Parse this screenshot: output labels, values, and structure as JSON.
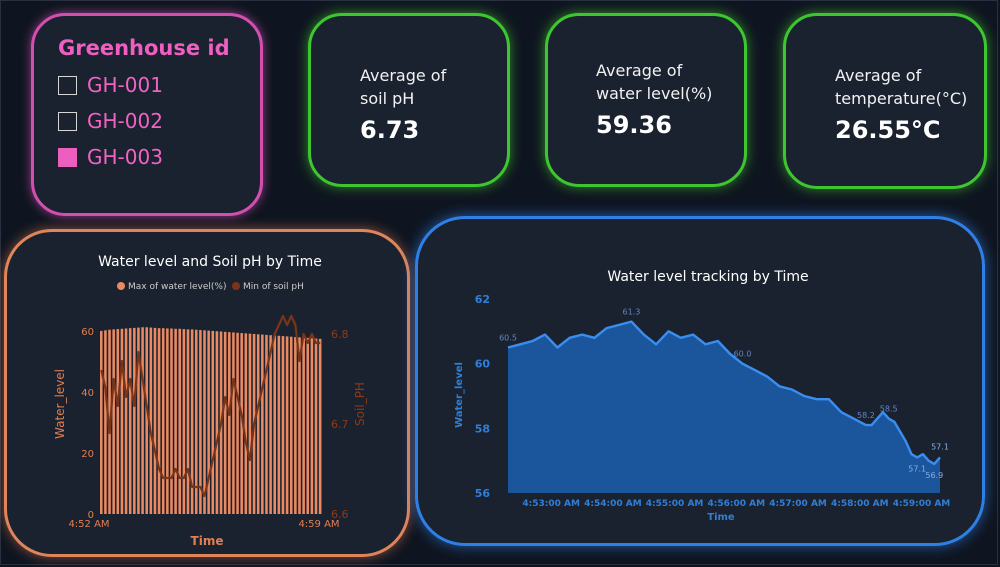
{
  "slicer": {
    "title": "Greenhouse id",
    "items": [
      {
        "label": "GH-001",
        "checked": false
      },
      {
        "label": "GH-002",
        "checked": false
      },
      {
        "label": "GH-003",
        "checked": true
      }
    ]
  },
  "kpis": [
    {
      "title_line1": "Average of",
      "title_line2": "soil pH",
      "value": "6.73"
    },
    {
      "title_line1": "Average of",
      "title_line2": "water level(%)",
      "value": "59.36"
    },
    {
      "title_line1": "Average of",
      "title_line2": "temperature(°C)",
      "value": "26.55°C"
    }
  ],
  "colors": {
    "background": "#0f1520",
    "panel": "#1b222f",
    "slicer_accent": "#ee5ebf",
    "kpi_border": "#3dc62e",
    "chart1_border": "#e0855a",
    "chart1_bar": "#e98a63",
    "chart1_line": "#7a3418",
    "chart1_axis_text": "#e07f52",
    "chart2_border": "#2e80e6",
    "chart2_fill": "#1b5fb0",
    "chart2_line": "#3a8ef0",
    "chart2_axis_text": "#2f7fd8"
  },
  "chart_data": [
    {
      "type": "bar",
      "title": "Water level and Soil pH by Time",
      "xlabel": "Time",
      "ylabel": "Water_level",
      "y2label": "Soil_PH",
      "ylim": [
        0,
        65
      ],
      "y2lim": [
        6.6,
        6.82
      ],
      "yticks": [
        0,
        20,
        40,
        60
      ],
      "y2ticks": [
        6.6,
        6.7,
        6.8
      ],
      "x_start_label": "4:52 AM",
      "x_end_label": "4:59 AM",
      "legend": [
        "Max of water level(%)",
        "Min of soil pH"
      ],
      "legend_position": "top",
      "series": [
        {
          "name": "Max of water level(%)",
          "type": "bar",
          "values": [
            60.1,
            60.3,
            60.5,
            60.6,
            60.7,
            60.8,
            60.9,
            61.0,
            61.1,
            61.2,
            61.3,
            61.3,
            61.2,
            61.1,
            61.0,
            61.0,
            60.9,
            60.9,
            60.8,
            60.8,
            60.7,
            60.6,
            60.6,
            60.5,
            60.4,
            60.3,
            60.2,
            60.1,
            60.0,
            59.9,
            59.8,
            59.7,
            59.6,
            59.5,
            59.4,
            59.3,
            59.2,
            59.1,
            59.0,
            58.9,
            58.8,
            58.7,
            58.6,
            58.5,
            58.4,
            58.3,
            58.2,
            58.1,
            58.0,
            57.9,
            57.8,
            57.7,
            57.6,
            57.5
          ]
        },
        {
          "name": "Min of soil pH",
          "type": "line",
          "axis": "secondary",
          "values": [
            6.76,
            6.74,
            6.69,
            6.75,
            6.72,
            6.77,
            6.73,
            6.75,
            6.72,
            6.78,
            6.75,
            6.72,
            6.69,
            6.67,
            6.65,
            6.64,
            6.64,
            6.64,
            6.65,
            6.64,
            6.64,
            6.65,
            6.63,
            6.63,
            6.63,
            6.62,
            6.64,
            6.66,
            6.68,
            6.7,
            6.73,
            6.71,
            6.75,
            6.73,
            6.71,
            6.68,
            6.66,
            6.7,
            6.72,
            6.74,
            6.76,
            6.78,
            6.8,
            6.81,
            6.82,
            6.81,
            6.82,
            6.81,
            6.77,
            6.8,
            6.79,
            6.8,
            6.79,
            6.79
          ]
        }
      ]
    },
    {
      "type": "area",
      "title": "Water level tracking by Time",
      "xlabel": "Time",
      "ylabel": "Water_level",
      "ylim": [
        56,
        62
      ],
      "yticks": [
        56,
        58,
        60,
        62
      ],
      "xticks": [
        "4:53:00 AM",
        "4:54:00 AM",
        "4:55:00 AM",
        "4:56:00 AM",
        "4:57:00 AM",
        "4:58:00 AM",
        "4:59:00 AM"
      ],
      "series": [
        {
          "name": "Water level",
          "x_minutes": [
            52.3,
            52.5,
            52.7,
            52.9,
            53.1,
            53.3,
            53.5,
            53.7,
            53.9,
            54.1,
            54.3,
            54.5,
            54.7,
            54.9,
            55.1,
            55.3,
            55.5,
            55.7,
            55.9,
            56.1,
            56.3,
            56.5,
            56.7,
            56.9,
            57.1,
            57.3,
            57.5,
            57.7,
            57.9,
            58.1,
            58.3,
            58.5,
            58.7,
            58.9,
            59.1,
            59.3
          ],
          "values": [
            60.5,
            60.6,
            60.7,
            60.9,
            60.5,
            60.8,
            60.9,
            60.8,
            61.1,
            61.2,
            61.3,
            60.9,
            60.6,
            61.0,
            60.8,
            60.9,
            60.6,
            60.7,
            60.3,
            60.0,
            59.8,
            59.6,
            59.3,
            59.2,
            59.0,
            58.9,
            58.9,
            58.5,
            58.3,
            58.2,
            58.1,
            58.1,
            58.3,
            58.5,
            58.3,
            58.2
          ],
          "data_labels": [
            {
              "index": 0,
              "label": "60.5"
            },
            {
              "index": 10,
              "label": "61.3"
            },
            {
              "index": 19,
              "label": "60.0"
            },
            {
              "index": 29,
              "label": "58.2"
            },
            {
              "index": 33,
              "label": "58.5"
            }
          ]
        }
      ],
      "tail_values": [
        57.9,
        57.6,
        57.2,
        57.1,
        57.2,
        57.0,
        56.9,
        57.1
      ],
      "tail_labels": [
        {
          "index": 3,
          "label": "57.1"
        },
        {
          "index": 6,
          "label": "56.9"
        },
        {
          "index": 7,
          "label": "57.1"
        }
      ]
    }
  ]
}
